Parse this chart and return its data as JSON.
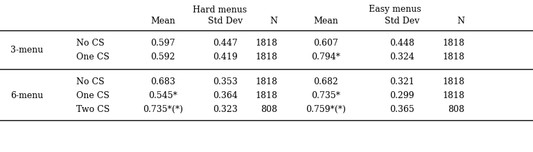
{
  "col_headers_top": [
    "Hard menus",
    "Easy menus"
  ],
  "col_headers_sub": [
    "Mean",
    "Std Dev",
    "N",
    "Mean",
    "Std Dev",
    "N"
  ],
  "rows": [
    {
      "group": "3-menu",
      "label": "No CS",
      "vals": [
        "0.597",
        "0.447",
        "1818",
        "0.607",
        "0.448",
        "1818"
      ]
    },
    {
      "group": "",
      "label": "One CS",
      "vals": [
        "0.592",
        "0.419",
        "1818",
        "0.794*",
        "0.324",
        "1818"
      ]
    },
    {
      "group": "6-menu",
      "label": "No CS",
      "vals": [
        "0.683",
        "0.353",
        "1818",
        "0.682",
        "0.321",
        "1818"
      ]
    },
    {
      "group": "",
      "label": "One CS",
      "vals": [
        "0.545*",
        "0.364",
        "1818",
        "0.735*",
        "0.299",
        "1818"
      ]
    },
    {
      "group": "",
      "label": "Two CS",
      "vals": [
        "0.735*(*)",
        "0.323",
        "808",
        "0.759*(*)",
        "0.365",
        "808"
      ]
    }
  ],
  "group_label_rows": {
    "3-menu": [
      0,
      1
    ],
    "6-menu": [
      2,
      3,
      4
    ]
  },
  "bg_color": "#ffffff",
  "text_color": "#000000",
  "fs": 9.0
}
